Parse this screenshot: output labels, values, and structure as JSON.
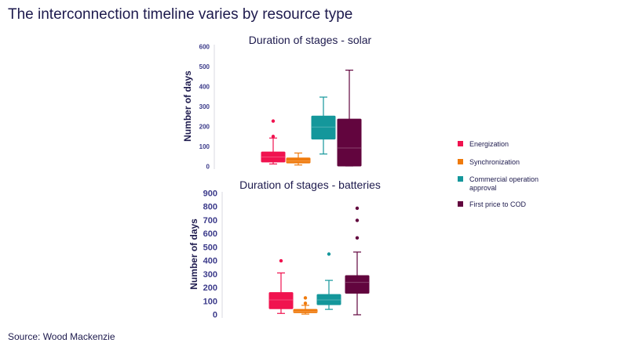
{
  "title": "The interconnection timeline varies by resource type",
  "source": "Source: Wood Mackenzie",
  "legend": [
    {
      "label_lines": [
        "Energization"
      ],
      "color": "#f0134f"
    },
    {
      "label_lines": [
        "Synchronization"
      ],
      "color": "#ef7a0c"
    },
    {
      "label_lines": [
        "Commercial operation",
        "approval"
      ],
      "color": "#14979b"
    },
    {
      "label_lines": [
        "First price to COD"
      ],
      "color": "#62053e"
    }
  ],
  "chart_data": [
    {
      "type": "box",
      "title": "Duration of stages - solar",
      "ylabel": "Number of days",
      "ylim": [
        0,
        600
      ],
      "yticks": [
        0,
        100,
        200,
        300,
        400,
        500,
        600
      ],
      "series": [
        {
          "name": "Energization",
          "color": "#f0134f",
          "whisker_low": 10,
          "q1": 20,
          "median": 45,
          "q3": 70,
          "whisker_high": 140,
          "outliers": [
            225,
            148
          ]
        },
        {
          "name": "Synchronization",
          "color": "#ef7a0c",
          "whisker_low": 5,
          "q1": 15,
          "median": 25,
          "q3": 40,
          "whisker_high": 65,
          "outliers": []
        },
        {
          "name": "Commercial operation approval",
          "color": "#14979b",
          "whisker_low": 60,
          "q1": 135,
          "median": 195,
          "q3": 250,
          "whisker_high": 345,
          "outliers": []
        },
        {
          "name": "First price to COD",
          "color": "#62053e",
          "whisker_low": 0,
          "q1": 0,
          "median": 90,
          "q3": 235,
          "whisker_high": 480,
          "outliers": []
        }
      ]
    },
    {
      "type": "box",
      "title": "Duration of stages - batteries",
      "ylabel": "Number of days",
      "ylim": [
        0,
        900
      ],
      "yticks": [
        0,
        100,
        200,
        300,
        400,
        500,
        600,
        700,
        800,
        900
      ],
      "series": [
        {
          "name": "Energization",
          "color": "#f0134f",
          "whisker_low": 10,
          "q1": 45,
          "median": 110,
          "q3": 165,
          "whisker_high": 310,
          "outliers": [
            400
          ]
        },
        {
          "name": "Synchronization",
          "color": "#ef7a0c",
          "whisker_low": 5,
          "q1": 15,
          "median": 25,
          "q3": 40,
          "whisker_high": 70,
          "outliers": [
            125,
            85
          ]
        },
        {
          "name": "Commercial operation approval",
          "color": "#14979b",
          "whisker_low": 40,
          "q1": 75,
          "median": 110,
          "q3": 150,
          "whisker_high": 255,
          "outliers": [
            450
          ]
        },
        {
          "name": "First price to COD",
          "color": "#62053e",
          "whisker_low": 0,
          "q1": 160,
          "median": 240,
          "q3": 290,
          "whisker_high": 465,
          "outliers": [
            570,
            700,
            790
          ]
        }
      ]
    }
  ]
}
